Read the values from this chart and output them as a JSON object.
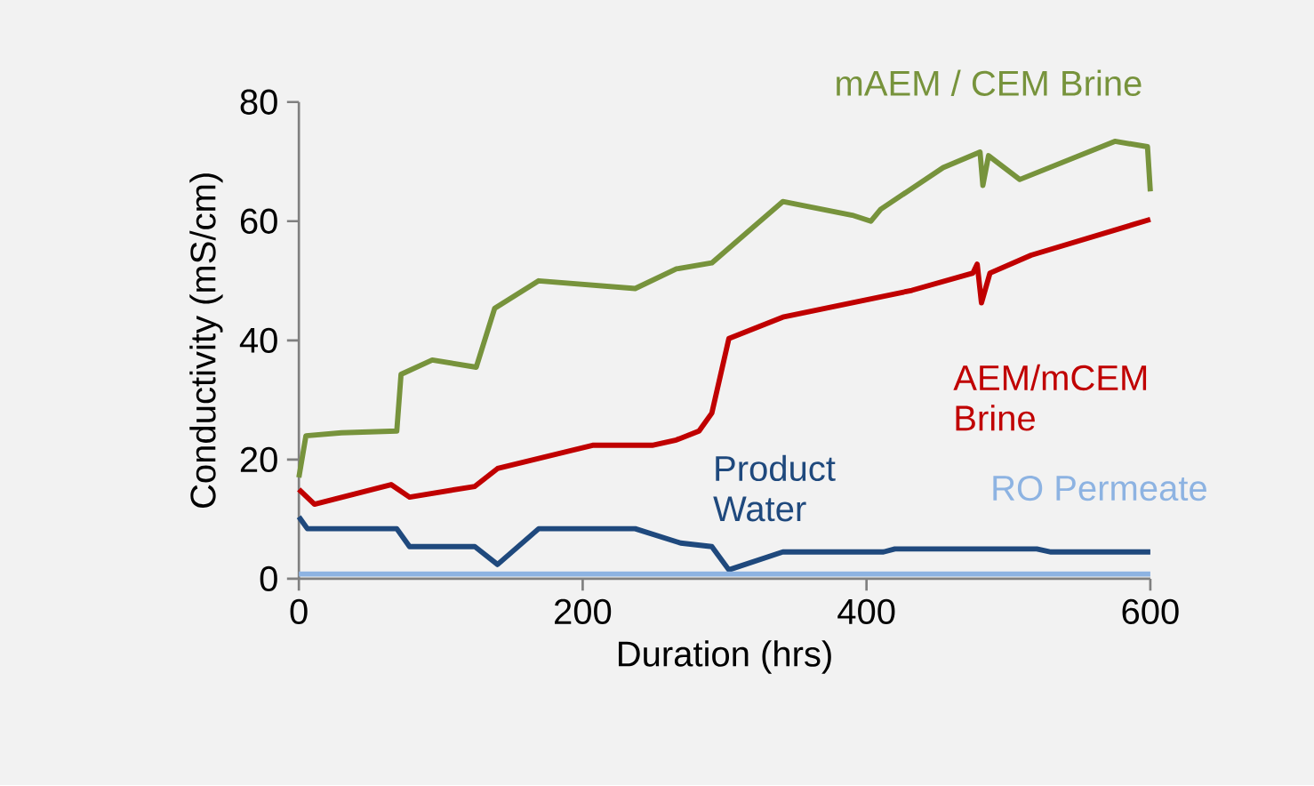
{
  "chart_data": {
    "type": "line",
    "xlabel": "Duration (hrs)",
    "ylabel": "Conductivity  (mS/cm)",
    "xlim": [
      0,
      600
    ],
    "ylim": [
      0,
      80
    ],
    "xticks": [
      0,
      200,
      400,
      600
    ],
    "yticks": [
      0,
      20,
      40,
      60,
      80
    ],
    "grid": false,
    "marker": "none",
    "line_style": "solid",
    "series": [
      {
        "name": "mAEM / CEM Brine",
        "color": "#77933c",
        "x": [
          0,
          5,
          30,
          69,
          72,
          94,
          125,
          138,
          169,
          237,
          266,
          291,
          341,
          390,
          403,
          410,
          454,
          480,
          482,
          486,
          508,
          575,
          598,
          600
        ],
        "values": [
          17,
          24,
          24.5,
          24.8,
          34.3,
          36.7,
          35.5,
          45.4,
          50,
          48.7,
          52,
          53,
          63.3,
          61,
          60,
          62,
          69,
          71.6,
          66,
          71,
          67,
          73.4,
          72.5,
          65
        ]
      },
      {
        "name": "AEM/mCEM Brine",
        "color": "#c00000",
        "x": [
          0,
          11,
          65,
          78,
          124,
          140,
          207,
          249,
          266,
          282,
          291,
          303,
          341,
          432,
          475,
          478,
          481,
          487,
          516,
          600
        ],
        "values": [
          15,
          12.5,
          15.8,
          13.7,
          15.5,
          18.5,
          22.4,
          22.4,
          23.3,
          24.8,
          27.8,
          40.3,
          43.9,
          48.4,
          51.3,
          52.8,
          46.3,
          51.3,
          54.3,
          60.3
        ]
      },
      {
        "name": "Product Water",
        "color": "#1f497d",
        "x": [
          0,
          6,
          69,
          78,
          124,
          140,
          169,
          237,
          269,
          291,
          303,
          341,
          412,
          420,
          520,
          530,
          600
        ],
        "values": [
          10.4,
          8.4,
          8.4,
          5.4,
          5.4,
          2.4,
          8.4,
          8.4,
          6,
          5.4,
          1.5,
          4.5,
          4.5,
          5,
          5,
          4.5,
          4.5
        ]
      },
      {
        "name": "RO Permeate",
        "color": "#8db3e2",
        "x": [
          0,
          100,
          200,
          300,
          400,
          500,
          600
        ],
        "values": [
          0.8,
          0.8,
          0.8,
          0.8,
          0.8,
          0.8,
          0.8
        ]
      }
    ]
  }
}
